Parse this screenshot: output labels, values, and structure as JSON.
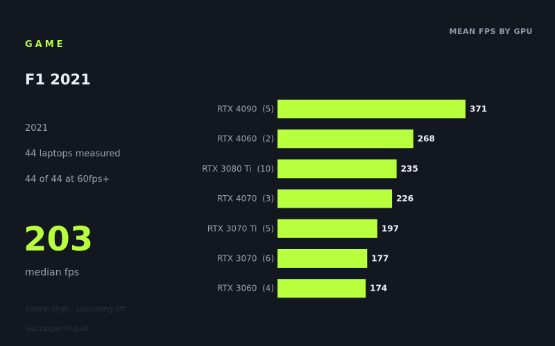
{
  "sidebar": {
    "section_label": "GAME",
    "game_title": "F1 2021",
    "year": "2021",
    "laptops_measured": "44 laptops measured",
    "at_60fps": "44 of 44 at 60fps+",
    "median_value": "203",
    "median_caption": "median fps",
    "settings_note": "1080p High · upscaling off",
    "source": "laptopgaming.uk"
  },
  "colors": {
    "accent": "#b8ff3d",
    "background": "#131720",
    "muted_text": "#9aa1ad",
    "bright_text": "#eef0f4"
  },
  "chart_data": {
    "type": "bar",
    "orientation": "horizontal",
    "title": "MEAN FPS BY GPU",
    "categories": [
      "RTX 4090  (5)",
      "RTX 4060  (2)",
      "RTX 3080 Ti  (10)",
      "RTX 4070  (3)",
      "RTX 3070 Ti  (5)",
      "RTX 3070  (6)",
      "RTX 3060  (4)"
    ],
    "values": [
      371,
      268,
      235,
      226,
      197,
      177,
      174
    ],
    "xlim": [
      0,
      371
    ],
    "grid": false,
    "legend": "none"
  }
}
